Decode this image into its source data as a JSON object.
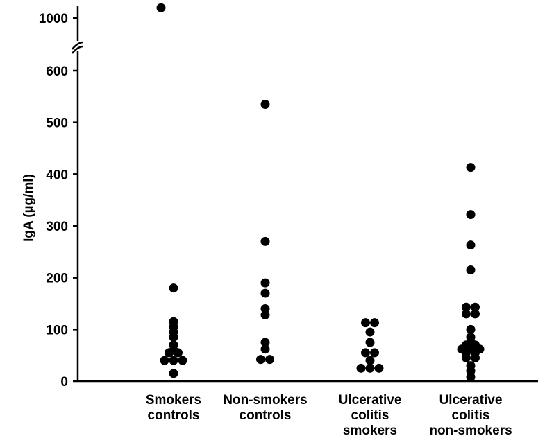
{
  "chart_data": {
    "type": "scatter",
    "title": "",
    "xlabel": "",
    "ylabel": "IgA (µg/ml)",
    "ylim": [
      0,
      600
    ],
    "y_break": {
      "above": 600,
      "upper_tick": 1000
    },
    "yticks": [
      0,
      100,
      200,
      300,
      400,
      500,
      600
    ],
    "ytick_labels": [
      "0",
      "100",
      "200",
      "300",
      "400",
      "500",
      "600"
    ],
    "upper_tick_label": "1000",
    "grid": false,
    "categories": [
      {
        "label_lines": [
          "Smokers",
          "controls"
        ]
      },
      {
        "label_lines": [
          "Non-smokers",
          "controls"
        ]
      },
      {
        "label_lines": [
          "Ulcerative",
          "colitis",
          "smokers"
        ]
      },
      {
        "label_lines": [
          "Ulcerative",
          "colitis",
          "non-smokers"
        ]
      }
    ],
    "series": [
      {
        "category": 0,
        "points": [
          {
            "y": 1020,
            "offset": -0.8
          },
          {
            "y": 180,
            "offset": 0
          },
          {
            "y": 115,
            "offset": 0
          },
          {
            "y": 105,
            "offset": 0
          },
          {
            "y": 95,
            "offset": 0
          },
          {
            "y": 85,
            "offset": 0
          },
          {
            "y": 70,
            "offset": 0
          },
          {
            "y": 60,
            "offset": 0
          },
          {
            "y": 55,
            "offset": -0.5
          },
          {
            "y": 55,
            "offset": 0.5
          },
          {
            "y": 40,
            "offset": -1
          },
          {
            "y": 40,
            "offset": 0
          },
          {
            "y": 40,
            "offset": 1
          },
          {
            "y": 15,
            "offset": 0
          }
        ]
      },
      {
        "category": 1,
        "points": [
          {
            "y": 535,
            "offset": 0
          },
          {
            "y": 270,
            "offset": 0
          },
          {
            "y": 190,
            "offset": 0
          },
          {
            "y": 170,
            "offset": 0
          },
          {
            "y": 140,
            "offset": 0
          },
          {
            "y": 128,
            "offset": 0
          },
          {
            "y": 75,
            "offset": 0
          },
          {
            "y": 62,
            "offset": 0
          },
          {
            "y": 42,
            "offset": -0.5
          },
          {
            "y": 42,
            "offset": 0.5
          }
        ]
      },
      {
        "category": 2,
        "points": [
          {
            "y": 113,
            "offset": -0.5
          },
          {
            "y": 113,
            "offset": 0.5
          },
          {
            "y": 95,
            "offset": 0
          },
          {
            "y": 75,
            "offset": 0
          },
          {
            "y": 55,
            "offset": -0.5
          },
          {
            "y": 55,
            "offset": 0.5
          },
          {
            "y": 40,
            "offset": 0
          },
          {
            "y": 25,
            "offset": -1
          },
          {
            "y": 25,
            "offset": 0
          },
          {
            "y": 25,
            "offset": 1
          }
        ]
      },
      {
        "category": 3,
        "points": [
          {
            "y": 413,
            "offset": 0
          },
          {
            "y": 322,
            "offset": 0
          },
          {
            "y": 263,
            "offset": 0
          },
          {
            "y": 215,
            "offset": 0
          },
          {
            "y": 143,
            "offset": -0.5
          },
          {
            "y": 143,
            "offset": 0.5
          },
          {
            "y": 130,
            "offset": -0.5
          },
          {
            "y": 130,
            "offset": 0.5
          },
          {
            "y": 100,
            "offset": 0
          },
          {
            "y": 85,
            "offset": 0
          },
          {
            "y": 75,
            "offset": 0
          },
          {
            "y": 70,
            "offset": -0.5
          },
          {
            "y": 70,
            "offset": 0.5
          },
          {
            "y": 62,
            "offset": -1
          },
          {
            "y": 62,
            "offset": 0
          },
          {
            "y": 62,
            "offset": 1
          },
          {
            "y": 55,
            "offset": -0.5
          },
          {
            "y": 55,
            "offset": 0.5
          },
          {
            "y": 45,
            "offset": -0.5
          },
          {
            "y": 45,
            "offset": 0.5
          },
          {
            "y": 30,
            "offset": 0
          },
          {
            "y": 20,
            "offset": 0
          },
          {
            "y": 8,
            "offset": 0
          }
        ]
      }
    ]
  }
}
